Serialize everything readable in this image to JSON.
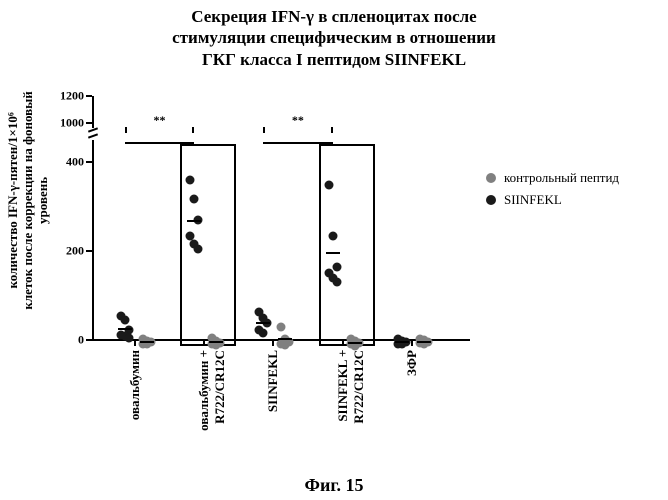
{
  "title_lines": [
    "Секреция IFN-γ в спленоцитах после",
    "стимуляции специфическим в отношении",
    "ГКГ класса I пептидом SIINFEKL"
  ],
  "fig_label": "Фиг. 15",
  "ylabel_lines": [
    "количество IFN-γ-пятен/1×10⁶",
    "клеток после коррекции на фоновый",
    "уровень"
  ],
  "plot": {
    "yticks": [
      0,
      200,
      400,
      1000,
      1200
    ],
    "linear_max": 450,
    "break_at": 450,
    "upper_min": 950,
    "upper_max": 1200,
    "categories": [
      {
        "key": "c1",
        "label": "овальбумин"
      },
      {
        "key": "c2",
        "label": "овальбумин +\nR722/CR12C"
      },
      {
        "key": "c3",
        "label": "SIINFEKL"
      },
      {
        "key": "c4",
        "label": "SIINFEKL +\nR722/CR12C"
      },
      {
        "key": "c5",
        "label": "ЗФР"
      }
    ],
    "series": [
      {
        "key": "control",
        "label": "контрольный пептид",
        "color": "#808080"
      },
      {
        "key": "siinfekl",
        "label": "SIINFEKL",
        "color": "#1a1a1a"
      }
    ],
    "points": {
      "c1": {
        "siinfekl": [
          55,
          45,
          22,
          12,
          8,
          5
        ],
        "control": [
          2,
          -3,
          -5,
          -8,
          -10
        ]
      },
      "c2": {
        "siinfekl": [
          360,
          318,
          270,
          235,
          215,
          205
        ],
        "control": [
          5,
          -2,
          -6,
          -10,
          -12
        ]
      },
      "c3": {
        "siinfekl": [
          62,
          50,
          38,
          22,
          15
        ],
        "control": [
          30,
          2,
          -4,
          -8,
          -12
        ]
      },
      "c4": {
        "siinfekl": [
          348,
          235,
          165,
          150,
          140,
          130
        ],
        "control": [
          3,
          -2,
          -6,
          -10,
          -14
        ]
      },
      "c5": {
        "siinfekl": [
          2,
          -2,
          -5,
          -8,
          -10
        ],
        "control": [
          3,
          -1,
          -4,
          -7,
          -9
        ]
      }
    },
    "boxes": [
      "c2",
      "c4"
    ],
    "sig": [
      {
        "from": "c1",
        "to": "c2",
        "label": "**"
      },
      {
        "from": "c3",
        "to": "c4",
        "label": "**"
      }
    ]
  }
}
